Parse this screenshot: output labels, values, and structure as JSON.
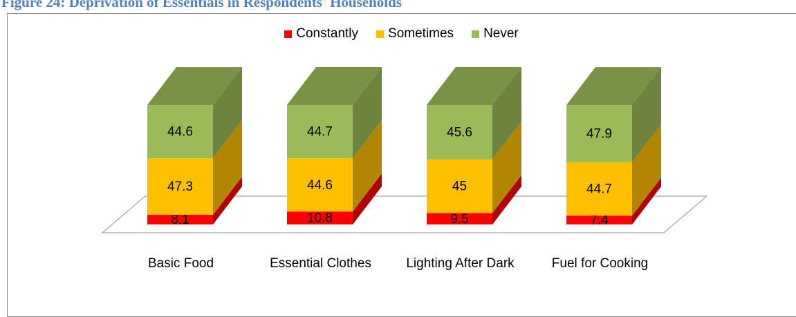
{
  "chart_data": {
    "type": "bar3d_stacked",
    "title": "Figure 24: Deprivation of Essentials in Respondents' Households",
    "categories": [
      "Basic Food",
      "Essential Clothes",
      "Lighting After Dark",
      "Fuel for Cooking"
    ],
    "series": [
      {
        "name": "Constantly",
        "color": "#ff0000",
        "values": [
          8.1,
          10.8,
          9.5,
          7.4
        ]
      },
      {
        "name": "Sometimes",
        "color": "#ffc000",
        "values": [
          47.3,
          44.6,
          45,
          44.7
        ]
      },
      {
        "name": "Never",
        "color": "#9bbb59",
        "values": [
          44.6,
          44.7,
          45.6,
          47.9
        ]
      }
    ],
    "legend": "top"
  }
}
